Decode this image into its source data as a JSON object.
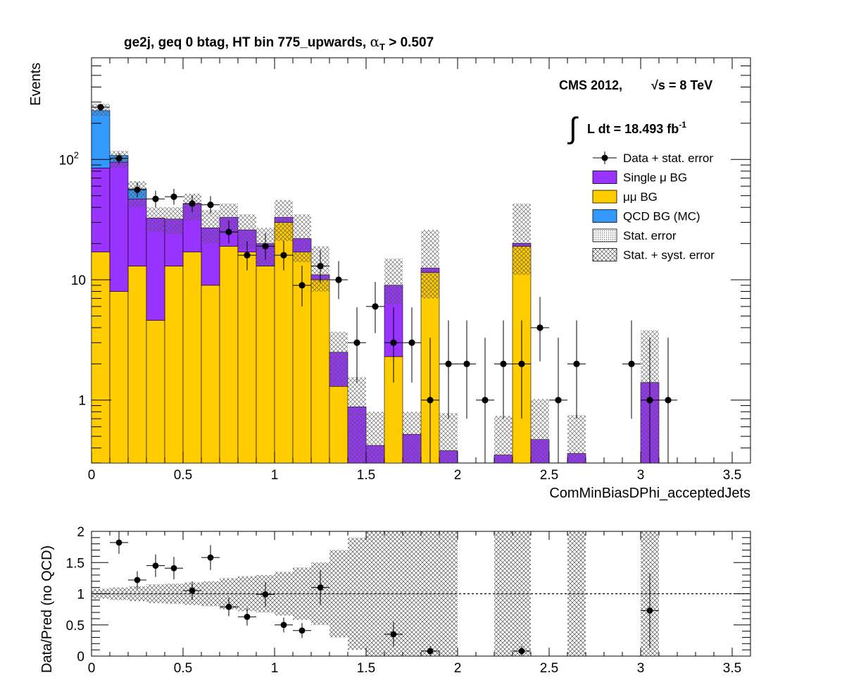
{
  "chart_data": [
    {
      "type": "bar",
      "stacked": true,
      "title": "ge2j, geq 0 btag, HT bin 775_upwards, αT > 0.507",
      "title_parts": {
        "main": "ge2j, geq 0 btag, HT bin 775_upwards, ",
        "alpha": "α",
        "alpha_sub": "T",
        "tail": " > 0.507"
      },
      "xlabel": "ComMinBiasDPhi_acceptedJets",
      "ylabel": "Events",
      "xlim": [
        0,
        3.6
      ],
      "ylim": [
        0.3,
        700
      ],
      "yscale": "log",
      "bin_width": 0.1,
      "x_ticks": [
        "0",
        "0.5",
        "1",
        "1.5",
        "2",
        "2.5",
        "3",
        "3.5"
      ],
      "y_ticks": [
        {
          "value": 1,
          "label": "1"
        },
        {
          "value": 10,
          "label": "10"
        },
        {
          "value": 100,
          "label": "10",
          "exp": "2"
        }
      ],
      "annotations": {
        "cms": "CMS 2012,",
        "sqrt": "√s = 8 TeV",
        "integral": "∫",
        "lumi": "L dt = 18.493 fb",
        "lumi_exp": "-1"
      },
      "legend_position": "top-right",
      "legend": [
        {
          "label": "Data + stat. error",
          "kind": "marker"
        },
        {
          "label": "Single μ BG",
          "kind": "fill",
          "color": "#9933ff"
        },
        {
          "label": "μμ BG",
          "kind": "fill",
          "color": "#ffcc00"
        },
        {
          "label": "QCD BG (MC)",
          "kind": "fill",
          "color": "#3399ff"
        },
        {
          "label": "Stat. error",
          "kind": "dots"
        },
        {
          "label": "Stat. + syst. error",
          "kind": "hatch"
        }
      ],
      "x": [
        0.05,
        0.15,
        0.25,
        0.35,
        0.45,
        0.55,
        0.65,
        0.75,
        0.85,
        0.95,
        1.05,
        1.15,
        1.25,
        1.35,
        1.45,
        1.55,
        1.65,
        1.75,
        1.85,
        1.95,
        2.05,
        2.15,
        2.25,
        2.35,
        2.45,
        2.55,
        2.65,
        2.75,
        2.85,
        2.95,
        3.05,
        3.15,
        3.25,
        3.35,
        3.45,
        3.55
      ],
      "colors": {
        "mumu": "#ffcc00",
        "singlemu": "#9933ff",
        "qcd": "#3399ff"
      },
      "series": [
        {
          "name": "μμ BG",
          "key": "mumu",
          "values": [
            17,
            8,
            13,
            4.6,
            13,
            17,
            9,
            19,
            17,
            13,
            30,
            17,
            10,
            1.3,
            0,
            0,
            2.3,
            0,
            11.5,
            0,
            0,
            0,
            0,
            19,
            0,
            0,
            0,
            0,
            0,
            0,
            0,
            0,
            0,
            0,
            0,
            0
          ]
        },
        {
          "name": "Single μ BG",
          "key": "singlemu",
          "values": [
            68,
            87,
            34,
            28,
            19,
            26,
            18,
            14,
            9,
            7,
            3,
            5,
            1,
            1.2,
            0.88,
            0.42,
            6.7,
            0.52,
            1,
            0.38,
            0,
            0,
            0.35,
            1.1,
            0.47,
            0,
            0.36,
            0,
            0,
            0,
            1.4,
            0,
            0,
            0,
            0,
            0
          ]
        },
        {
          "name": "QCD BG (MC)",
          "key": "qcd",
          "values": [
            170,
            13,
            10,
            0,
            0,
            0,
            0,
            0,
            0,
            0,
            0,
            0,
            0,
            0,
            0,
            0,
            0,
            0,
            0,
            0,
            0,
            0,
            0,
            0,
            0,
            0,
            0,
            0,
            0,
            0,
            0,
            0,
            0,
            0,
            0,
            0
          ]
        }
      ],
      "syst_band": {
        "lo": [
          230,
          85,
          40,
          25,
          24,
          31,
          20,
          24,
          18,
          13,
          21,
          14,
          8,
          1.3,
          0.3,
          0.3,
          6.2,
          0.3,
          7,
          0.3,
          null,
          null,
          0.3,
          11,
          0.3,
          null,
          0.3,
          null,
          null,
          null,
          0.3,
          null,
          null,
          null,
          null,
          null
        ],
        "hi": [
          290,
          118,
          66,
          40,
          40,
          52,
          38,
          43,
          35,
          27,
          46,
          35,
          19,
          3.7,
          1.55,
          0.8,
          15,
          0.8,
          26,
          0.78,
          null,
          null,
          0.74,
          43,
          1.02,
          null,
          0.75,
          null,
          null,
          null,
          3.8,
          null,
          null,
          null,
          null,
          null
        ]
      },
      "data": {
        "x": [
          0.05,
          0.15,
          0.25,
          0.35,
          0.45,
          0.55,
          0.65,
          0.75,
          0.85,
          0.95,
          1.05,
          1.15,
          1.25,
          1.35,
          1.45,
          1.55,
          1.65,
          1.75,
          1.85,
          1.95,
          2.05,
          2.15,
          2.25,
          2.35,
          2.45,
          2.55,
          2.65,
          2.95,
          3.05,
          3.15
        ],
        "y": [
          272,
          102,
          56,
          47,
          49,
          43,
          42,
          25,
          16,
          19,
          16,
          9,
          13,
          10,
          3,
          6,
          3,
          3,
          1,
          2,
          2,
          1,
          2,
          2,
          4,
          1,
          2,
          2,
          1,
          1
        ],
        "err_lo": [
          16,
          10,
          7.5,
          7,
          7,
          6.5,
          6.5,
          5,
          4,
          4.3,
          4,
          3,
          3.6,
          3.1,
          1.6,
          2.4,
          1.6,
          1.6,
          0.83,
          1.3,
          1.3,
          0.83,
          1.3,
          1.3,
          1.9,
          0.83,
          1.3,
          1.3,
          0.83,
          0.83
        ],
        "err_hi": [
          17,
          11,
          8.5,
          8,
          8,
          7.5,
          7.5,
          6,
          5,
          5.4,
          5,
          4.1,
          4.7,
          4.3,
          2.9,
          3.6,
          2.9,
          2.9,
          2.3,
          2.6,
          2.6,
          2.3,
          2.6,
          2.6,
          3.2,
          2.3,
          2.6,
          2.6,
          2.3,
          2.3
        ]
      }
    },
    {
      "type": "scatter",
      "xlabel": "",
      "ylabel": "Data/Pred (no QCD)",
      "xlim": [
        0,
        3.6
      ],
      "ylim": [
        0,
        2
      ],
      "reference_line": 1,
      "x_ticks": [
        "0",
        "0.5",
        "1",
        "1.5",
        "2",
        "2.5",
        "3",
        "3.5"
      ],
      "y_ticks": [
        "0",
        "0.5",
        "1",
        "1.5",
        "2"
      ],
      "x": [
        0.15,
        0.25,
        0.35,
        0.45,
        0.55,
        0.65,
        0.75,
        0.85,
        0.95,
        1.05,
        1.15,
        1.25,
        1.65,
        1.85,
        2.35,
        3.05
      ],
      "y": [
        1.82,
        1.22,
        1.45,
        1.41,
        1.05,
        1.58,
        0.79,
        0.63,
        0.99,
        0.5,
        0.41,
        1.1,
        0.35,
        0.08,
        0.08,
        0.73
      ],
      "err": [
        0.18,
        0.14,
        0.18,
        0.18,
        0.15,
        0.2,
        0.15,
        0.14,
        0.2,
        0.12,
        0.12,
        0.28,
        0.2,
        0.08,
        0.08,
        0.6
      ],
      "band": [
        0.08,
        0.1,
        0.12,
        0.15,
        0.16,
        0.18,
        0.2,
        0.25,
        0.28,
        0.3,
        0.35,
        0.42,
        0.5,
        0.7,
        0.9,
        1.1,
        1.2,
        1.4,
        1.5,
        1.7,
        null,
        null,
        2,
        2,
        null,
        null,
        2,
        null,
        null,
        null,
        2,
        null,
        null,
        null,
        null,
        null
      ]
    }
  ]
}
